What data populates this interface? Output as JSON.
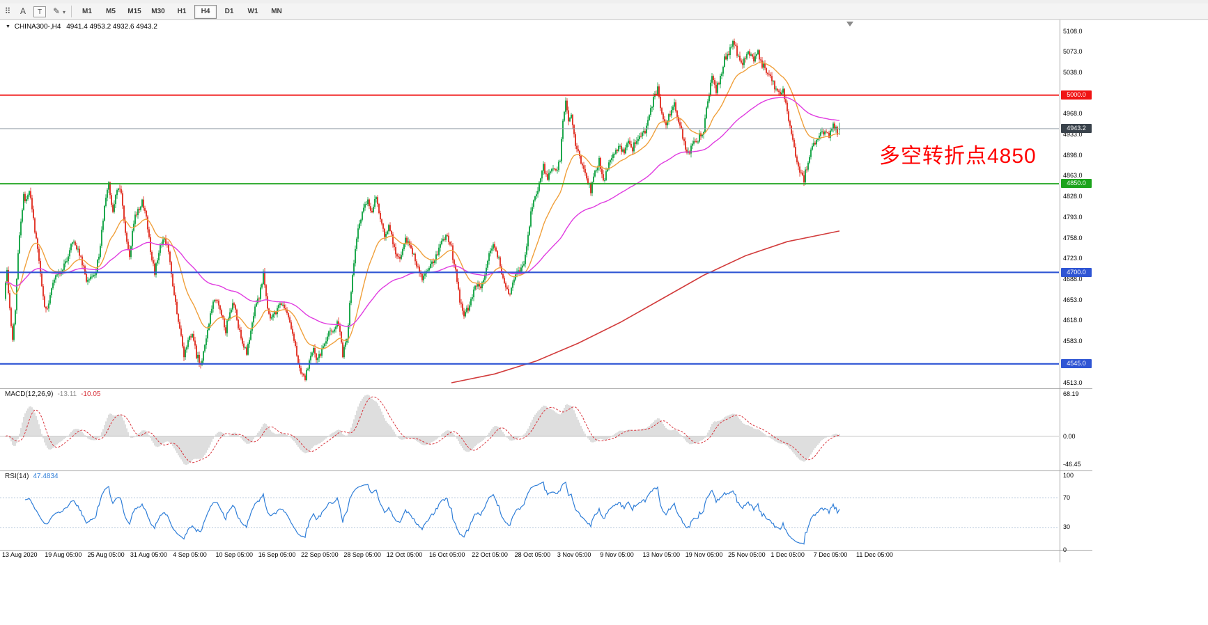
{
  "toolbar": {
    "icons": [
      {
        "name": "toolbar-drag-handle-icon",
        "glyph": "⠿",
        "boxed": false
      },
      {
        "name": "arrow-text-tool-icon",
        "glyph": "A",
        "boxed": false
      },
      {
        "name": "text-label-tool-icon",
        "glyph": "T",
        "boxed": true
      },
      {
        "name": "draw-tool-icon",
        "glyph": "✎",
        "boxed": false
      },
      {
        "name": "draw-tool-caret-icon",
        "glyph": "▾",
        "boxed": false,
        "caret": true
      }
    ],
    "timeframes": [
      "M1",
      "M5",
      "M15",
      "M30",
      "H1",
      "H4",
      "D1",
      "W1",
      "MN"
    ],
    "active_timeframe": "H4"
  },
  "chart": {
    "symbol": "CHINA300-,H4",
    "ohlc": "4941.4 4953.2 4932.6 4943.2",
    "annotation_text": "多空转折点4850",
    "annotation_color": "#ff0000",
    "y_range": [
      4513.0,
      5108.0
    ],
    "y_ticks": [
      5108.0,
      5073.0,
      5038.0,
      4968.0,
      4933.0,
      4898.0,
      4863.0,
      4828.0,
      4793.0,
      4758.0,
      4723.0,
      4688.0,
      4653.0,
      4618.0,
      4583.0,
      4513.0
    ],
    "levels": [
      {
        "value": 5000.0,
        "label": "5000.0",
        "color": "#f01414",
        "width": 1.8
      },
      {
        "value": 4850.0,
        "label": "4850.0",
        "color": "#1ca31c",
        "width": 1.8
      },
      {
        "value": 4700.0,
        "label": "4700.0",
        "color": "#2f55d4",
        "width": 2.2
      },
      {
        "value": 4545.0,
        "label": "4545.0",
        "color": "#2f55d4",
        "width": 2.2
      }
    ],
    "bid": {
      "value": 4943.2,
      "label": "4943.2",
      "line_color": "#97a1ab",
      "tag_bg": "#39424b"
    }
  },
  "chart_data": {
    "type": "candlestick",
    "symbol": "CHINA300-",
    "timeframe": "H4",
    "last_bar": {
      "open": 4941.4,
      "high": 4953.2,
      "low": 4932.6,
      "close": 4943.2
    },
    "up_color": "#1fa84e",
    "down_color": "#e23c30",
    "ma_orange_color": "#f0a03c",
    "ma_magenta_color": "#e03ce0",
    "ma_red_color": "#d23c3c",
    "price_anchors": [
      [
        6,
        4655
      ],
      [
        10,
        4700
      ],
      [
        14,
        4635
      ],
      [
        18,
        4590
      ],
      [
        22,
        4640
      ],
      [
        26,
        4730
      ],
      [
        30,
        4790
      ],
      [
        34,
        4830
      ],
      [
        38,
        4820
      ],
      [
        42,
        4835
      ],
      [
        46,
        4810
      ],
      [
        50,
        4770
      ],
      [
        54,
        4740
      ],
      [
        58,
        4700
      ],
      [
        62,
        4660
      ],
      [
        66,
        4635
      ],
      [
        70,
        4650
      ],
      [
        74,
        4668
      ],
      [
        78,
        4690
      ],
      [
        84,
        4700
      ],
      [
        90,
        4705
      ],
      [
        96,
        4722
      ],
      [
        102,
        4748
      ],
      [
        108,
        4745
      ],
      [
        114,
        4730
      ],
      [
        120,
        4705
      ],
      [
        126,
        4682
      ],
      [
        132,
        4690
      ],
      [
        138,
        4705
      ],
      [
        144,
        4745
      ],
      [
        150,
        4808
      ],
      [
        156,
        4850
      ],
      [
        162,
        4805
      ],
      [
        168,
        4845
      ],
      [
        174,
        4832
      ],
      [
        180,
        4762
      ],
      [
        186,
        4730
      ],
      [
        192,
        4788
      ],
      [
        198,
        4808
      ],
      [
        204,
        4818
      ],
      [
        210,
        4798
      ],
      [
        216,
        4738
      ],
      [
        222,
        4700
      ],
      [
        228,
        4738
      ],
      [
        234,
        4758
      ],
      [
        240,
        4748
      ],
      [
        246,
        4700
      ],
      [
        252,
        4645
      ],
      [
        258,
        4602
      ],
      [
        264,
        4562
      ],
      [
        270,
        4580
      ],
      [
        276,
        4598
      ],
      [
        282,
        4560
      ],
      [
        288,
        4545
      ],
      [
        294,
        4578
      ],
      [
        300,
        4618
      ],
      [
        306,
        4648
      ],
      [
        312,
        4658
      ],
      [
        318,
        4632
      ],
      [
        324,
        4602
      ],
      [
        330,
        4638
      ],
      [
        336,
        4648
      ],
      [
        342,
        4610
      ],
      [
        348,
        4582
      ],
      [
        354,
        4562
      ],
      [
        360,
        4598
      ],
      [
        366,
        4638
      ],
      [
        372,
        4658
      ],
      [
        378,
        4698
      ],
      [
        384,
        4642
      ],
      [
        390,
        4620
      ],
      [
        396,
        4635
      ],
      [
        402,
        4650
      ],
      [
        408,
        4640
      ],
      [
        414,
        4628
      ],
      [
        420,
        4600
      ],
      [
        426,
        4562
      ],
      [
        432,
        4532
      ],
      [
        438,
        4520
      ],
      [
        444,
        4552
      ],
      [
        450,
        4568
      ],
      [
        456,
        4550
      ],
      [
        462,
        4572
      ],
      [
        468,
        4588
      ],
      [
        474,
        4598
      ],
      [
        480,
        4608
      ],
      [
        486,
        4615
      ],
      [
        492,
        4562
      ],
      [
        498,
        4588
      ],
      [
        504,
        4672
      ],
      [
        510,
        4745
      ],
      [
        516,
        4788
      ],
      [
        522,
        4808
      ],
      [
        528,
        4818
      ],
      [
        534,
        4800
      ],
      [
        540,
        4828
      ],
      [
        546,
        4792
      ],
      [
        552,
        4762
      ],
      [
        558,
        4778
      ],
      [
        564,
        4750
      ],
      [
        570,
        4722
      ],
      [
        576,
        4730
      ],
      [
        582,
        4758
      ],
      [
        588,
        4745
      ],
      [
        594,
        4730
      ],
      [
        600,
        4706
      ],
      [
        606,
        4690
      ],
      [
        612,
        4700
      ],
      [
        618,
        4710
      ],
      [
        624,
        4720
      ],
      [
        630,
        4740
      ],
      [
        636,
        4754
      ],
      [
        642,
        4760
      ],
      [
        648,
        4740
      ],
      [
        654,
        4700
      ],
      [
        660,
        4652
      ],
      [
        666,
        4630
      ],
      [
        672,
        4640
      ],
      [
        678,
        4660
      ],
      [
        684,
        4678
      ],
      [
        690,
        4668
      ],
      [
        696,
        4698
      ],
      [
        702,
        4738
      ],
      [
        708,
        4750
      ],
      [
        714,
        4730
      ],
      [
        720,
        4700
      ],
      [
        726,
        4680
      ],
      [
        732,
        4662
      ],
      [
        738,
        4688
      ],
      [
        744,
        4700
      ],
      [
        750,
        4710
      ],
      [
        756,
        4738
      ],
      [
        762,
        4798
      ],
      [
        768,
        4828
      ],
      [
        774,
        4850
      ],
      [
        780,
        4878
      ],
      [
        786,
        4860
      ],
      [
        792,
        4878
      ],
      [
        798,
        4868
      ],
      [
        804,
        4888
      ],
      [
        808,
        4960
      ],
      [
        812,
        4988
      ],
      [
        816,
        4952
      ],
      [
        820,
        4962
      ],
      [
        824,
        4930
      ],
      [
        830,
        4900
      ],
      [
        836,
        4880
      ],
      [
        842,
        4858
      ],
      [
        848,
        4840
      ],
      [
        854,
        4868
      ],
      [
        860,
        4888
      ],
      [
        866,
        4850
      ],
      [
        872,
        4878
      ],
      [
        878,
        4898
      ],
      [
        884,
        4905
      ],
      [
        890,
        4910
      ],
      [
        896,
        4900
      ],
      [
        902,
        4920
      ],
      [
        908,
        4910
      ],
      [
        914,
        4928
      ],
      [
        920,
        4930
      ],
      [
        926,
        4940
      ],
      [
        932,
        4962
      ],
      [
        938,
        4995
      ],
      [
        944,
        5012
      ],
      [
        950,
        4968
      ],
      [
        956,
        4950
      ],
      [
        962,
        4970
      ],
      [
        968,
        4985
      ],
      [
        974,
        4958
      ],
      [
        980,
        4930
      ],
      [
        986,
        4900
      ],
      [
        992,
        4910
      ],
      [
        998,
        4920
      ],
      [
        1004,
        4930
      ],
      [
        1010,
        4942
      ],
      [
        1016,
        4990
      ],
      [
        1022,
        5030
      ],
      [
        1028,
        5008
      ],
      [
        1034,
        5032
      ],
      [
        1040,
        5060
      ],
      [
        1046,
        5072
      ],
      [
        1052,
        5092
      ],
      [
        1058,
        5072
      ],
      [
        1064,
        5050
      ],
      [
        1070,
        5062
      ],
      [
        1076,
        5072
      ],
      [
        1082,
        5060
      ],
      [
        1088,
        5070
      ],
      [
        1094,
        5052
      ],
      [
        1100,
        5040
      ],
      [
        1106,
        5030
      ],
      [
        1112,
        5012
      ],
      [
        1118,
        5000
      ],
      [
        1124,
        5012
      ],
      [
        1130,
        4972
      ],
      [
        1136,
        4930
      ],
      [
        1142,
        4900
      ],
      [
        1148,
        4872
      ],
      [
        1154,
        4858
      ],
      [
        1160,
        4890
      ],
      [
        1166,
        4912
      ],
      [
        1172,
        4922
      ],
      [
        1178,
        4932
      ],
      [
        1184,
        4940
      ],
      [
        1190,
        4930
      ],
      [
        1196,
        4946
      ],
      [
        1202,
        4938
      ],
      [
        1205,
        4943.2
      ]
    ],
    "ma_red_points": [
      [
        648,
        4513
      ],
      [
        710,
        4528
      ],
      [
        770,
        4550
      ],
      [
        830,
        4580
      ],
      [
        890,
        4615
      ],
      [
        950,
        4655
      ],
      [
        1010,
        4695
      ],
      [
        1070,
        4728
      ],
      [
        1130,
        4752
      ],
      [
        1205,
        4770
      ]
    ],
    "x_labels": [
      "13 Aug 2020",
      "19 Aug 05:00",
      "25 Aug 05:00",
      "31 Aug 05:00",
      "4 Sep 05:00",
      "10 Sep 05:00",
      "16 Sep 05:00",
      "22 Sep 05:00",
      "28 Sep 05:00",
      "12 Oct 05:00",
      "16 Oct 05:00",
      "22 Oct 05:00",
      "28 Oct 05:00",
      "3 Nov 05:00",
      "9 Nov 05:00",
      "13 Nov 05:00",
      "19 Nov 05:00",
      "25 Nov 05:00",
      "1 Dec 05:00",
      "7 Dec 05:00",
      "11 Dec 05:00"
    ]
  },
  "macd": {
    "label": "MACD(12,26,9)",
    "value_main": "-13.11",
    "value_signal": "-10.05",
    "params": {
      "fast": 12,
      "slow": 26,
      "signal": 9
    },
    "hist_color": "#bdbdbd",
    "signal_color": "#d8343c",
    "max": 68.19,
    "min": -46.45,
    "axis": [
      {
        "value": 68.19,
        "label": "68.19"
      },
      {
        "value": 0,
        "label": "0.00"
      },
      {
        "value": -46.45,
        "label": "-46.45"
      }
    ]
  },
  "rsi": {
    "label": "RSI(14)",
    "value": "47.4834",
    "period": 14,
    "line_color": "#2f7ed8",
    "levels": [
      70,
      30
    ],
    "axis": [
      {
        "value": 100,
        "label": "100"
      },
      {
        "value": 70,
        "label": "70"
      },
      {
        "value": 30,
        "label": "30"
      },
      {
        "value": 0,
        "label": "0"
      }
    ]
  }
}
